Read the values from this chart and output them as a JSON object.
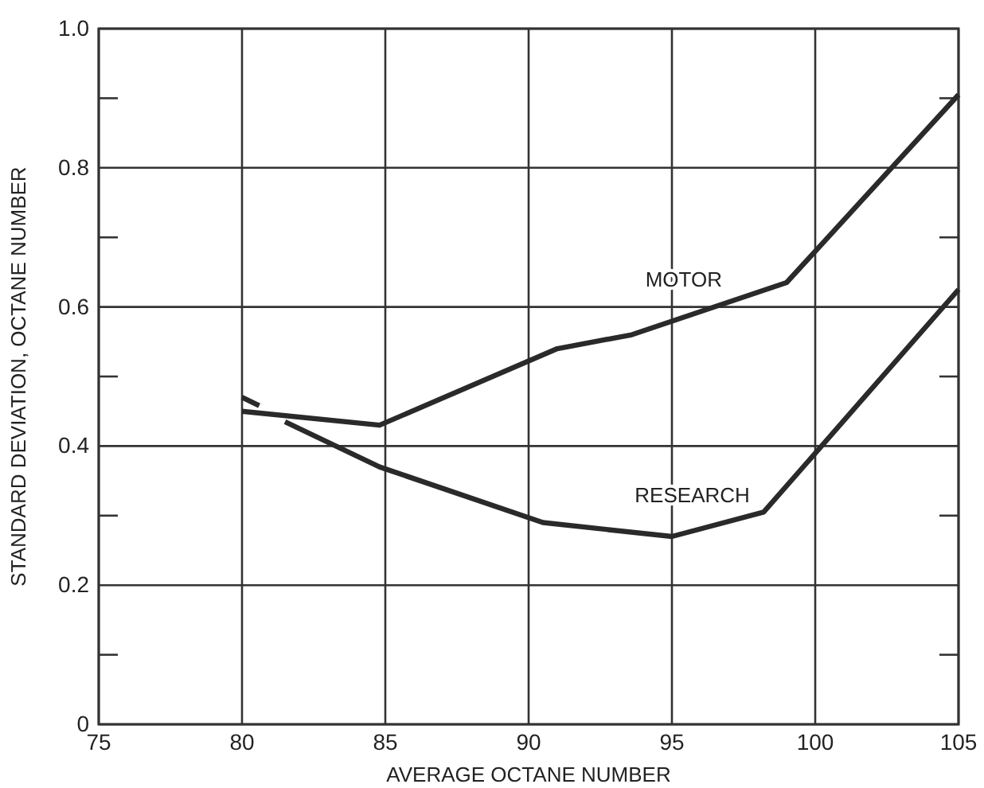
{
  "chart_data": {
    "type": "line",
    "xlabel": "AVERAGE OCTANE NUMBER",
    "ylabel": "STANDARD DEVIATION, OCTANE NUMBER",
    "xlim": [
      75,
      105
    ],
    "xticks": [
      75,
      80,
      85,
      90,
      95,
      100,
      105
    ],
    "ylim": [
      0,
      1.0
    ],
    "yticks": [
      {
        "value": 0,
        "label": "0"
      },
      {
        "value": 0.1,
        "label": null
      },
      {
        "value": 0.2,
        "label": "0.2"
      },
      {
        "value": 0.3,
        "label": null
      },
      {
        "value": 0.4,
        "label": "0.4"
      },
      {
        "value": 0.5,
        "label": null
      },
      {
        "value": 0.6,
        "label": "0.6"
      },
      {
        "value": 0.7,
        "label": null
      },
      {
        "value": 0.8,
        "label": "0.8"
      },
      {
        "value": 0.9,
        "label": null
      },
      {
        "value": 1.0,
        "label": "1.0"
      }
    ],
    "grid": true,
    "marker": "none",
    "line_style": "solid",
    "series": [
      {
        "name": "MOTOR",
        "color": "#2a2a2a",
        "x": [
          80,
          84.8,
          91,
          93.6,
          99,
          105
        ],
        "values": [
          0.45,
          0.43,
          0.54,
          0.56,
          0.635,
          0.905
        ]
      },
      {
        "name": "RESEARCH",
        "color": "#2a2a2a",
        "x": [
          80,
          80.6,
          81,
          81.5,
          84.8,
          90.5,
          95,
          98.2,
          105
        ],
        "values": [
          0.47,
          0.458,
          null,
          0.435,
          0.37,
          0.29,
          0.27,
          0.305,
          0.625
        ]
      }
    ]
  }
}
